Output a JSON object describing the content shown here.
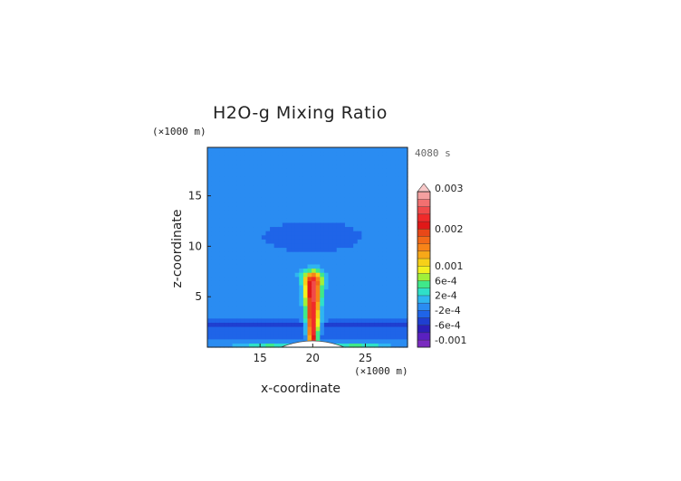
{
  "chart_data": {
    "type": "heatmap",
    "title": "H2O-g Mixing Ratio",
    "time_label": "4080 s",
    "xlabel": "x-coordinate",
    "ylabel": "z-coordinate",
    "x_unit": "(×1000 m)",
    "y_unit": "(×1000 m)",
    "xlim": [
      10,
      29
    ],
    "ylim": [
      0,
      19.8
    ],
    "x_ticks": [
      "15",
      "20",
      "25"
    ],
    "y_ticks": [
      "5",
      "10",
      "15"
    ],
    "x_tick_values": [
      15,
      20,
      25
    ],
    "y_tick_values": [
      5,
      10,
      15
    ],
    "colorbar": {
      "labels": [
        "0.003",
        "0.002",
        "0.001",
        "6e-4",
        "2e-4",
        "-2e-4",
        "-6e-4",
        "-0.001"
      ],
      "label_values": [
        0.003,
        0.002,
        0.001,
        0.0006,
        0.0002,
        -0.0002,
        -0.0006,
        -0.001
      ],
      "levels": [
        -0.0012,
        -0.001,
        -0.0008,
        -0.0006,
        -0.0004,
        -0.0002,
        0.0,
        0.0002,
        0.0004,
        0.0006,
        0.0008,
        0.001,
        0.0012,
        0.0014,
        0.0016,
        0.0018,
        0.002,
        0.0022,
        0.0024,
        0.0026,
        0.0028,
        0.003
      ],
      "colors": [
        "#7a2bbf",
        "#5a20c0",
        "#2c1fb8",
        "#1f3fd0",
        "#1f64e8",
        "#2a8cf2",
        "#2fb5f0",
        "#2fe0c8",
        "#3fe88a",
        "#9ff03a",
        "#f2f020",
        "#f7d018",
        "#f7a818",
        "#f78418",
        "#f26a18",
        "#e84818",
        "#e01818",
        "#f02a2a",
        "#f04a4a",
        "#f27070",
        "#f4a0a0"
      ],
      "extend_top_color": "#f8c8c8"
    }
  }
}
